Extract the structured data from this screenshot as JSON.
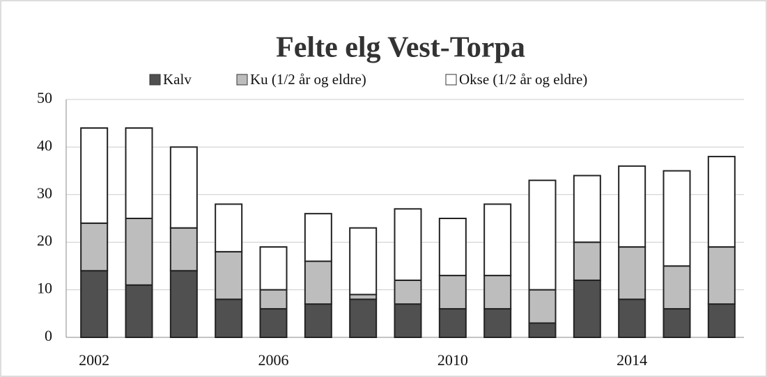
{
  "chart_data": {
    "type": "bar",
    "stacked": true,
    "title": "Felte elg Vest-Torpa",
    "categories": [
      "2002",
      null,
      null,
      null,
      "2006",
      null,
      null,
      null,
      "2010",
      null,
      null,
      null,
      "2014",
      null,
      null
    ],
    "series": [
      {
        "name": "Kalv",
        "color": "#505050",
        "values": [
          14,
          11,
          14,
          8,
          6,
          7,
          8,
          7,
          6,
          6,
          3,
          12,
          8,
          6,
          7
        ]
      },
      {
        "name": "Ku (1/2 år og eldre)",
        "color": "#bdbdbd",
        "values": [
          10,
          14,
          9,
          10,
          4,
          9,
          1,
          5,
          7,
          7,
          7,
          8,
          11,
          9,
          12
        ]
      },
      {
        "name": "Okse (1/2 år og eldre)",
        "color": "#ffffff",
        "values": [
          20,
          19,
          17,
          10,
          9,
          10,
          14,
          15,
          12,
          15,
          23,
          14,
          17,
          20,
          19
        ]
      }
    ],
    "ylim": [
      0,
      50
    ],
    "yticks": [
      0,
      10,
      20,
      30,
      40,
      50
    ],
    "grid": true,
    "legend": "top"
  }
}
